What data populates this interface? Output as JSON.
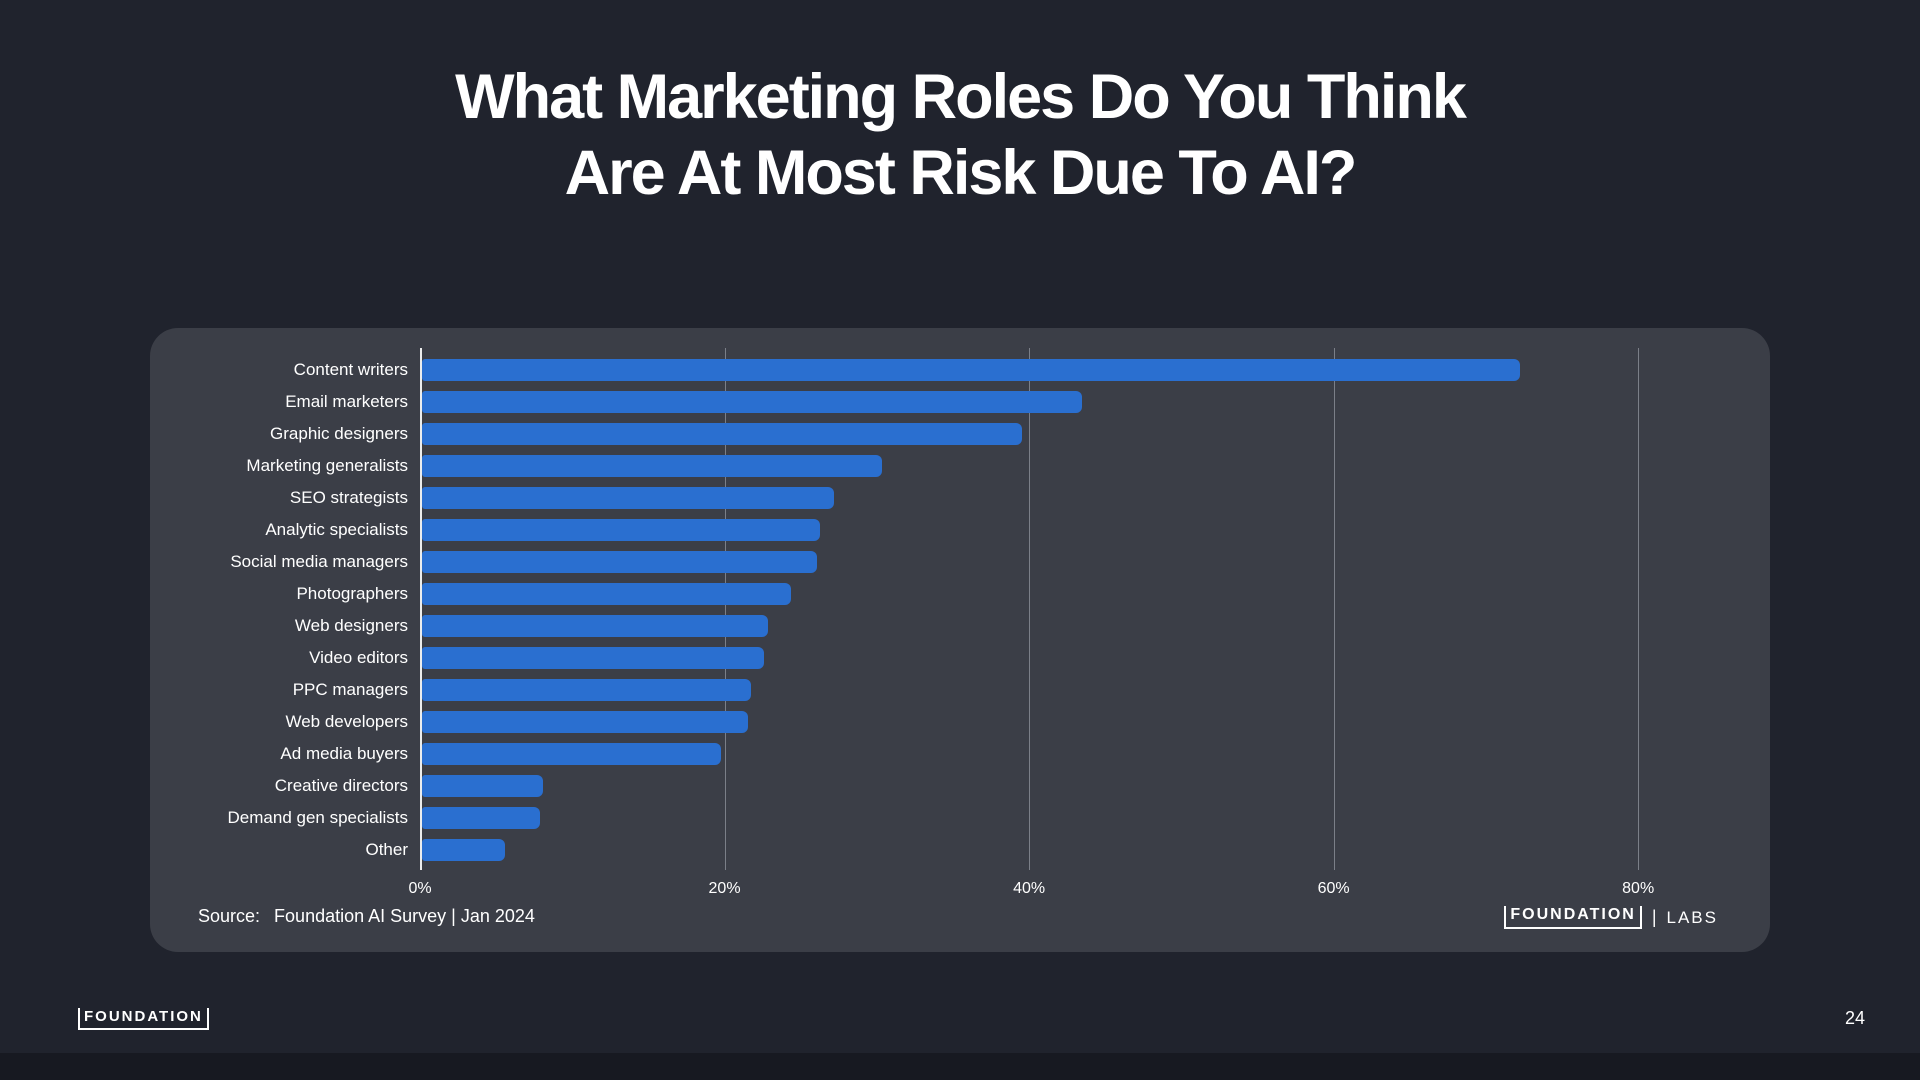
{
  "slide": {
    "title_line1": "What Marketing Roles Do You Think",
    "title_line2": "Are At Most Risk Due To AI?",
    "page_number": "24"
  },
  "footer": {
    "logo_text": "FOUNDATION"
  },
  "card": {
    "source_label": "Source:",
    "source_value": "Foundation AI Survey | Jan 2024",
    "logo": {
      "foundation": "FOUNDATION",
      "separator": "|",
      "labs": "LABS"
    }
  },
  "chart_data": {
    "type": "bar",
    "orientation": "horizontal",
    "title": "What Marketing Roles Do You Think Are At Most Risk Due To AI?",
    "categories": [
      "Content writers",
      "Email marketers",
      "Graphic designers",
      "Marketing generalists",
      "SEO strategists",
      "Analytic specialists",
      "Social media managers",
      "Photographers",
      "Web designers",
      "Video editors",
      "PPC managers",
      "Web developers",
      "Ad media buyers",
      "Creative directors",
      "Demand gen specialists",
      "Other"
    ],
    "values": [
      71.7,
      43.1,
      39.2,
      30.0,
      26.9,
      26.0,
      25.8,
      24.1,
      22.6,
      22.3,
      21.5,
      21.3,
      19.5,
      7.9,
      7.7,
      5.4
    ],
    "unit": "%",
    "x_ticks": [
      "0%",
      "20%",
      "40%",
      "60%",
      "80%"
    ],
    "x_tick_values": [
      0,
      20,
      40,
      60,
      80
    ],
    "xlim": [
      0,
      88
    ],
    "grid": "vertical-gridlines-at-ticks",
    "legend": "none",
    "colors": {
      "bar": "#2a6fd0",
      "card_background": "#3b3e47",
      "page_background": "#20232d",
      "axis_line": "#eceded",
      "gridline": "#7b7f88",
      "text": "#ffffff"
    }
  }
}
